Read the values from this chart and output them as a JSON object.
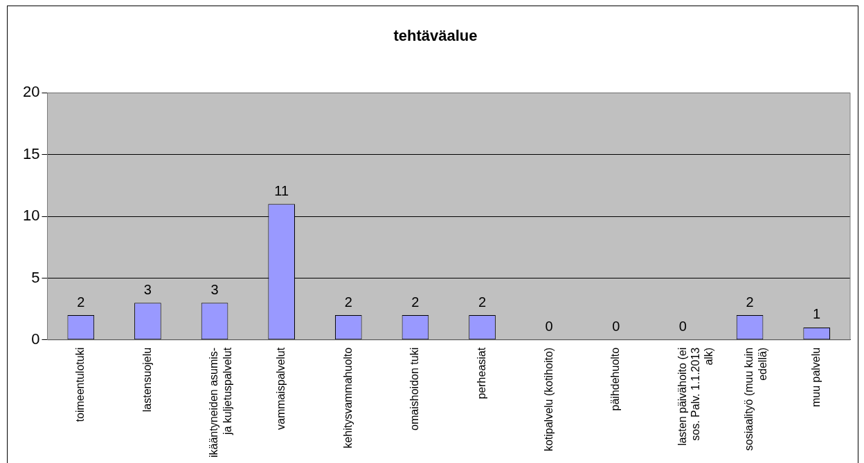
{
  "chart_data": {
    "type": "bar",
    "title": "tehtäväalue",
    "categories": [
      "toimeentulotuki",
      "lastensuojelu",
      "ikääntyneiden asumis- ja kuljetuspalvelut",
      "vammaispalvelut",
      "kehitysvammahuolto",
      "omaishoidon tuki",
      "perheasiat",
      "kotipalvelu (kotihoito)",
      "päihdehuolto",
      "lasten päivähoito (ei sos. Palv. 1.1.2013 alk)",
      "sosiaalityö (muu kuin edellä)",
      "muu palvelu"
    ],
    "values": [
      2,
      3,
      3,
      11,
      2,
      2,
      2,
      0,
      0,
      0,
      2,
      1
    ],
    "color": "#9999ff",
    "ylim": [
      0,
      20
    ],
    "yticks": [
      0,
      5,
      10,
      15,
      20
    ],
    "grid": "y",
    "legend": false,
    "data_labels": true
  }
}
